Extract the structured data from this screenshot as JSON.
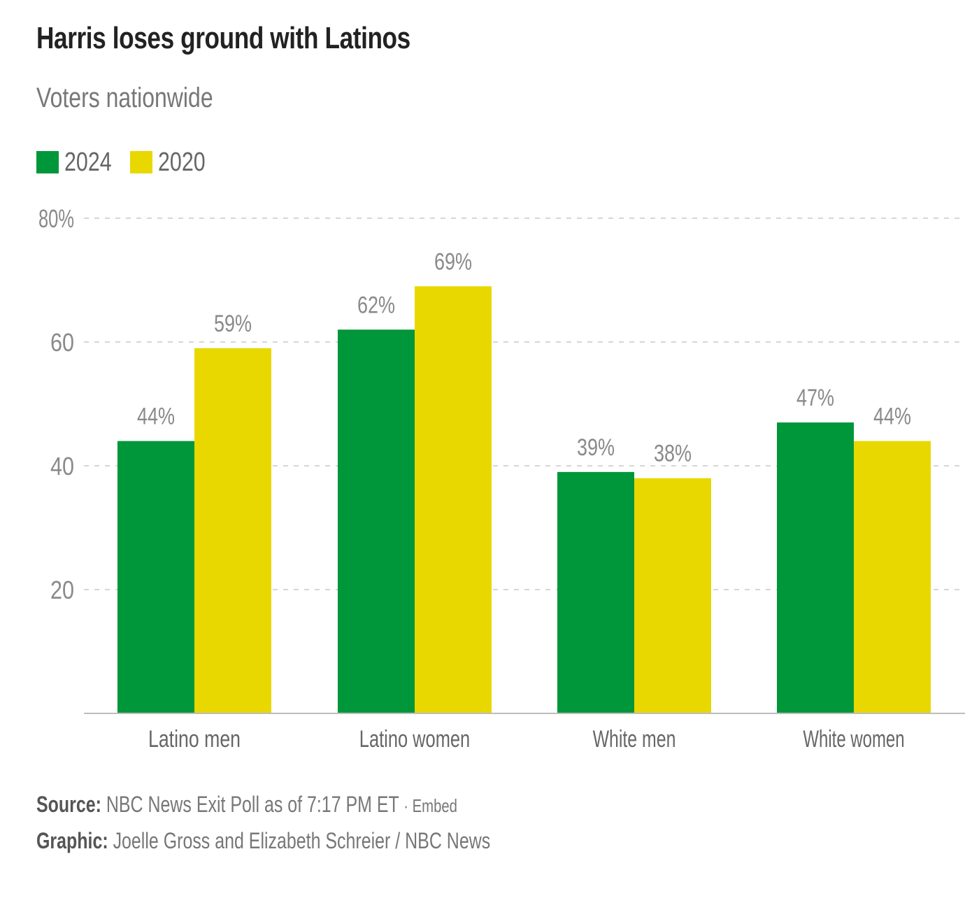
{
  "chart_data": {
    "type": "bar",
    "title": "Harris loses ground with Latinos",
    "subtitle": "Voters nationwide",
    "categories": [
      "Latino men",
      "Latino women",
      "White men",
      "White women"
    ],
    "series": [
      {
        "name": "2024",
        "color": "#00963a",
        "values": [
          44,
          62,
          39,
          47
        ],
        "labels": [
          "44%",
          "62%",
          "39%",
          "47%"
        ]
      },
      {
        "name": "2020",
        "color": "#e8d800",
        "values": [
          59,
          69,
          38,
          44
        ],
        "labels": [
          "59%",
          "69%",
          "38%",
          "44%"
        ]
      }
    ],
    "ylim": [
      0,
      80
    ],
    "yticks": [
      20,
      40,
      60,
      80
    ],
    "ytick_labels": [
      "20",
      "40",
      "60",
      "80%"
    ],
    "xlabel": "",
    "ylabel": "",
    "legend_position": "top-left",
    "grid": true
  },
  "footer": {
    "source_label": "Source:",
    "source_text": "NBC News Exit Poll as of 7:17 PM ET",
    "embed_label": "· Embed",
    "graphic_label": "Graphic:",
    "graphic_text": "Joelle Gross and Elizabeth Schreier / NBC News"
  }
}
